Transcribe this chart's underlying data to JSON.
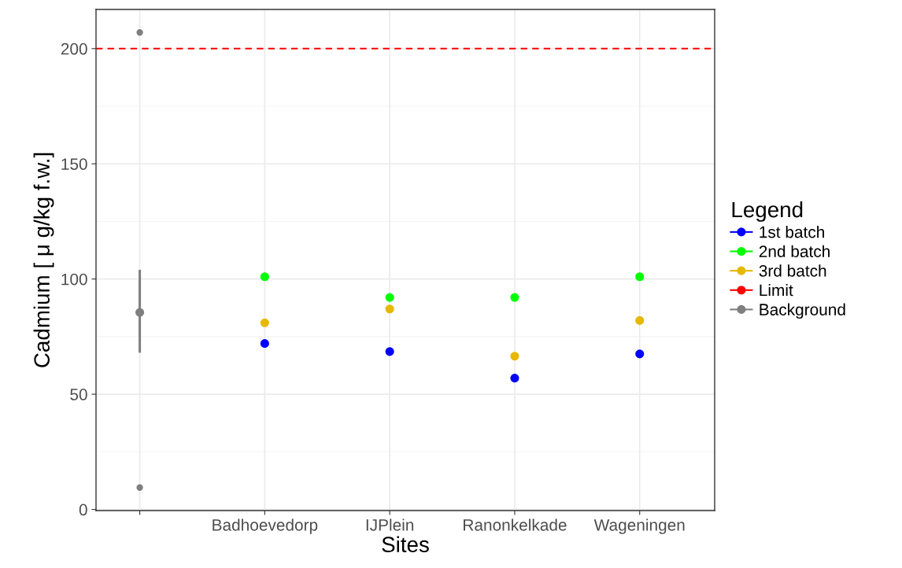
{
  "chart_data": {
    "type": "scatter",
    "xlabel": "Sites",
    "ylabel": "Cadmium [ μ g/kg f.w.]",
    "legend_title": "Legend",
    "categories": [
      null,
      "Badhoevedorp",
      "IJPlein",
      "Ranonkelkade",
      "Wageningen"
    ],
    "series": [
      {
        "name": "1st batch",
        "color": "#0000ff",
        "values": [
          null,
          72,
          68.5,
          57,
          67.5
        ]
      },
      {
        "name": "2nd batch",
        "color": "#00ff00",
        "values": [
          null,
          101,
          92,
          92,
          101
        ]
      },
      {
        "name": "3rd batch",
        "color": "#e6b800",
        "values": [
          null,
          81,
          87,
          66.5,
          82
        ]
      },
      {
        "name": "Background",
        "color": "#7f7f7f",
        "values": [
          85.5,
          null,
          null,
          null,
          null
        ],
        "errors": [
          [
            68,
            104
          ],
          null,
          null,
          null,
          null
        ]
      },
      {
        "color": "#7f7f7f",
        "values": [
          207,
          null,
          null,
          null,
          null
        ]
      },
      {
        "color": "#7f7f7f",
        "values": [
          9.5,
          null,
          null,
          null,
          null
        ]
      }
    ],
    "ref_lines": [
      {
        "axis": "y",
        "value": 200,
        "label": "Limit",
        "color": "#ff0000",
        "line_style": "dashed"
      }
    ],
    "ylim": [
      -0.5,
      217
    ],
    "yticks": [
      0,
      50,
      100,
      150,
      200
    ],
    "grid": true,
    "legend": "right",
    "marker": "circle"
  }
}
